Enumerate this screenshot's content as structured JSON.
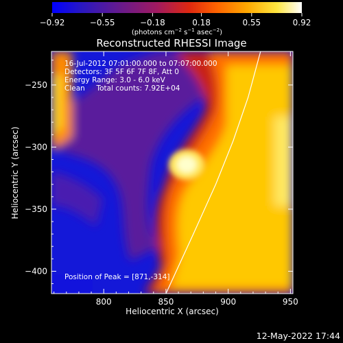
{
  "chart_data": {
    "type": "heatmap",
    "title": "Reconstructed RHESSI Image",
    "xlabel": "Heliocentric X (arcsec)",
    "ylabel": "Heliocentric Y (arcsec)",
    "xlim": [
      758,
      952
    ],
    "ylim": [
      -418,
      -223
    ],
    "x_ticks": [
      800,
      850,
      900,
      950
    ],
    "y_ticks": [
      -250,
      -300,
      -350,
      -400
    ],
    "colorbar": {
      "range": [
        -0.92,
        0.92
      ],
      "ticks": [
        "−0.92",
        "−0.55",
        "−0.18",
        "0.18",
        "0.55",
        "0.92"
      ],
      "tick_values": [
        -0.92,
        -0.55,
        -0.18,
        0.18,
        0.55,
        0.92
      ],
      "unit_parts": [
        "(photons cm",
        "−2",
        " s",
        "−1",
        " asec",
        "−2",
        ")"
      ],
      "colormap": [
        "#0000ff",
        "#2018c8",
        "#5a1a96",
        "#8a1a78",
        "#c01818",
        "#ff3c00",
        "#ff9600",
        "#ffd200",
        "#ffff80",
        "#ffffff"
      ]
    },
    "annotations": [
      "16-Jul-2012 07:01:00.000 to 07:07:00.000",
      "Detectors: 3F 5F 6F 7F 8F, Att 0",
      "Energy Range: 3.0 - 6.0 keV",
      "Clean     Total counts: 7.92E+04"
    ],
    "peak_label": "Position of Peak = [871,-314]",
    "peak": [
      871,
      -314
    ],
    "limb_line": [
      [
        850,
        -418
      ],
      [
        872,
        -370
      ],
      [
        890,
        -330
      ],
      [
        904,
        -295
      ],
      [
        916,
        -260
      ],
      [
        926,
        -223
      ]
    ]
  },
  "footer": {
    "timestamp": "12-May-2022 17:44"
  }
}
